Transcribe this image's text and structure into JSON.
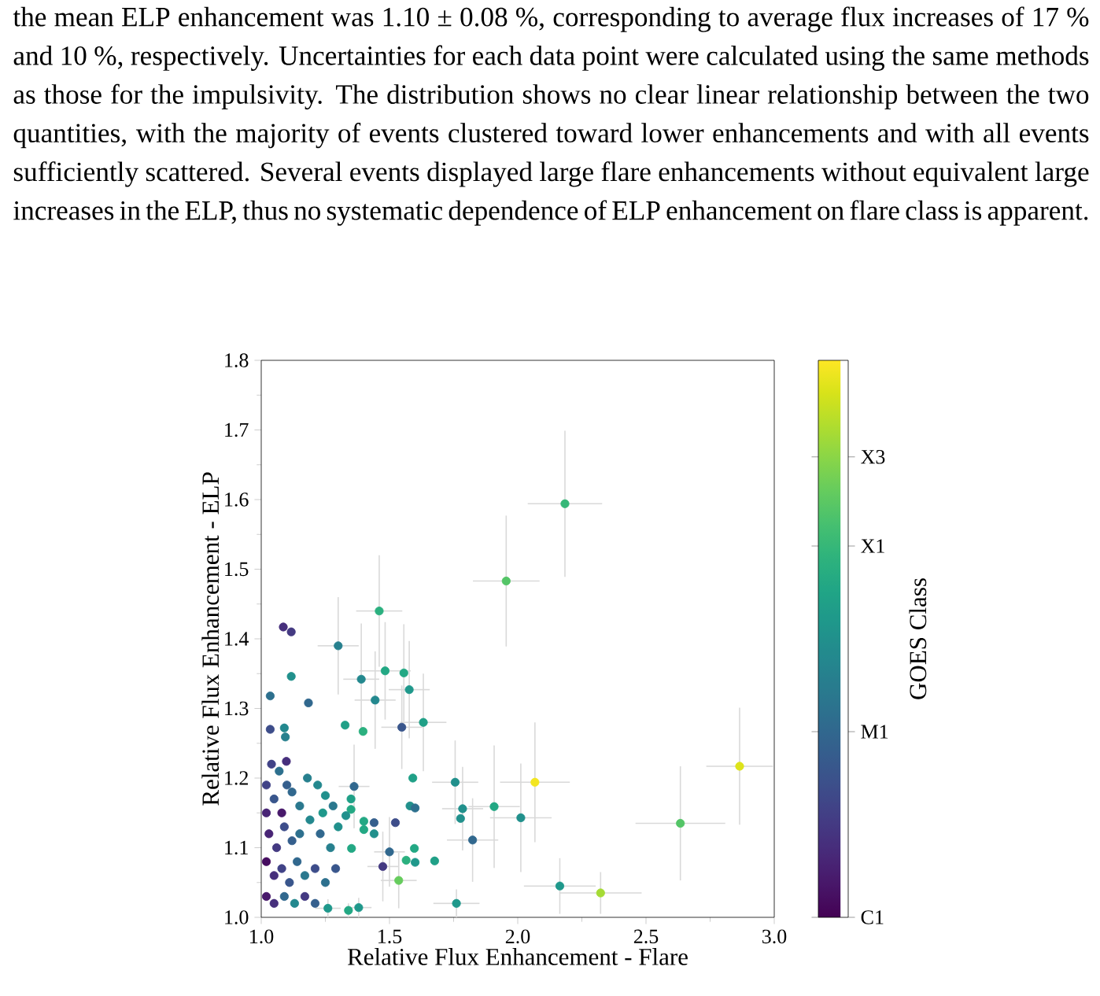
{
  "chart_data": {
    "type": "scatter",
    "annotations": [
      "the mean ELP enhancement was 1.10 ± 0.08 %, corresponding to average flux increases of 17 % and 10 %, respectively. Uncertainties for each data point were calculated using the same methods as those for the impulsivity. The distribution shows no clear linear relationship between the two quantities, with the majority of events clustered toward lower enhancements and with all events sufficiently scattered. Several events displayed large flare enhancements without equivalent large increases in the ELP, thus no systematic dependence of ELP enhancement on flare class is apparent."
    ],
    "xlabel": "Relative Flux Enhancement - Flare",
    "ylabel": "Relative Flux Enhancement - ELP",
    "clabel": "GOES Class",
    "marker": "circle",
    "xlim": [
      1.0,
      3.0
    ],
    "ylim": [
      1.0,
      1.8
    ],
    "xticks": [
      {
        "value": 1,
        "label": "1.0"
      },
      {
        "value": 1.5,
        "label": "1.5"
      },
      {
        "value": 2,
        "label": "2.0"
      },
      {
        "value": 2.5,
        "label": "2.5"
      },
      {
        "value": 3,
        "label": "3.0"
      }
    ],
    "yticks": [
      {
        "value": 1,
        "label": "1.0"
      },
      1.1,
      1.2,
      1.3,
      1.4,
      1.5,
      1.6,
      1.7,
      1.8
    ],
    "clim": [
      -6,
      -3
    ],
    "cticks": [
      {
        "value": -6,
        "label": "C1"
      },
      {
        "value": -5,
        "label": "M1"
      },
      {
        "value": -4,
        "label": "X1"
      },
      {
        "value": -3.52,
        "label": "X3"
      }
    ],
    "x": [
      1.955,
      2.184,
      2.865,
      2.634,
      2.067,
      2.164,
      2.323,
      1.908,
      2.012,
      1.824,
      1.46,
      1.086,
      1.117,
      1.3,
      1.117,
      1.483,
      1.556,
      1.39,
      1.577,
      1.035,
      1.184,
      1.444,
      1.327,
      1.397,
      1.548,
      1.632,
      1.035,
      1.09,
      1.094,
      1.098,
      1.591,
      1.756,
      1.785,
      1.777,
      1.58,
      1.6,
      1.523,
      1.597,
      1.565,
      1.6,
      1.676,
      1.536,
      1.761,
      1.474,
      1.5,
      1.44,
      1.44,
      1.362,
      1.35,
      1.35,
      1.33,
      1.4,
      1.4,
      1.352,
      1.26,
      1.34,
      1.38,
      1.02,
      1.05,
      1.08,
      1.12,
      1.15,
      1.18,
      1.22,
      1.25,
      1.28,
      1.03,
      1.06,
      1.09,
      1.12,
      1.15,
      1.19,
      1.23,
      1.27,
      1.02,
      1.05,
      1.08,
      1.11,
      1.14,
      1.17,
      1.21,
      1.25,
      1.29,
      1.02,
      1.05,
      1.09,
      1.13,
      1.17,
      1.21,
      1.02,
      1.04,
      1.1,
      1.07,
      1.3,
      1.24
    ],
    "values": [
      1.483,
      1.594,
      1.217,
      1.135,
      1.194,
      1.045,
      1.035,
      1.159,
      1.143,
      1.111,
      1.44,
      1.417,
      1.41,
      1.39,
      1.346,
      1.354,
      1.351,
      1.342,
      1.327,
      1.318,
      1.308,
      1.312,
      1.276,
      1.267,
      1.273,
      1.28,
      1.27,
      1.272,
      1.259,
      1.224,
      1.2,
      1.194,
      1.156,
      1.142,
      1.16,
      1.157,
      1.136,
      1.099,
      1.082,
      1.079,
      1.081,
      1.053,
      1.02,
      1.073,
      1.094,
      1.136,
      1.12,
      1.188,
      1.17,
      1.155,
      1.146,
      1.138,
      1.126,
      1.099,
      1.013,
      1.01,
      1.014,
      1.19,
      1.17,
      1.15,
      1.18,
      1.16,
      1.2,
      1.19,
      1.175,
      1.16,
      1.12,
      1.1,
      1.13,
      1.11,
      1.12,
      1.14,
      1.12,
      1.1,
      1.08,
      1.06,
      1.07,
      1.05,
      1.08,
      1.06,
      1.07,
      1.05,
      1.07,
      1.03,
      1.02,
      1.03,
      1.02,
      1.03,
      1.02,
      1.15,
      1.22,
      1.19,
      1.21,
      1.13,
      1.15
    ],
    "cvalues": [
      -3.8,
      -4.0,
      -3.15,
      -3.8,
      -3.05,
      -4.4,
      -3.4,
      -4.2,
      -4.5,
      -5.0,
      -4.1,
      -5.6,
      -5.5,
      -4.7,
      -4.5,
      -4.2,
      -4.2,
      -4.6,
      -4.4,
      -4.9,
      -5.0,
      -4.6,
      -4.3,
      -4.1,
      -5.2,
      -4.3,
      -5.3,
      -4.6,
      -4.7,
      -5.6,
      -4.3,
      -4.5,
      -4.5,
      -4.5,
      -4.5,
      -4.9,
      -5.3,
      -4.2,
      -4.1,
      -4.4,
      -4.3,
      -3.7,
      -4.4,
      -5.5,
      -5.0,
      -5.1,
      -4.5,
      -5.0,
      -4.3,
      -4.2,
      -4.5,
      -4.2,
      -4.2,
      -4.2,
      -4.4,
      -4.2,
      -4.4,
      -5.4,
      -5.2,
      -5.8,
      -5.0,
      -4.8,
      -4.7,
      -4.6,
      -4.5,
      -4.8,
      -5.7,
      -5.5,
      -5.3,
      -5.1,
      -4.9,
      -4.6,
      -5.0,
      -4.7,
      -5.9,
      -5.6,
      -5.4,
      -5.2,
      -5.0,
      -4.8,
      -5.3,
      -4.9,
      -5.2,
      -5.8,
      -5.6,
      -5.0,
      -4.6,
      -5.5,
      -5.1,
      -5.7,
      -5.4,
      -5.1,
      -4.9,
      -4.5,
      -4.4
    ],
    "xerrors": [
      0.13,
      0.145,
      0.13,
      0.175,
      0.136,
      0.14,
      0.16,
      0.1,
      0.12,
      0.1,
      0.09,
      null,
      null,
      0.08,
      null,
      0.1,
      null,
      0.07,
      0.08,
      null,
      null,
      0.08,
      null,
      null,
      0.08,
      0.09,
      null,
      null,
      null,
      null,
      null,
      0.09,
      0.08,
      null,
      null,
      null,
      null,
      null,
      null,
      null,
      null,
      0.07,
      0.09,
      0.06,
      0.06,
      null,
      null,
      0.06,
      null,
      null,
      null,
      null,
      null,
      null,
      0.05,
      null,
      0.05,
      null,
      null,
      null,
      null,
      null,
      null,
      null,
      null,
      null,
      null,
      null,
      null,
      null,
      null,
      null,
      null,
      null,
      null,
      null,
      null,
      null,
      null,
      null,
      null,
      null,
      null,
      null,
      null,
      null,
      null,
      null,
      null,
      null,
      null,
      null,
      null,
      null,
      null
    ],
    "errors": [
      0.094,
      0.105,
      0.084,
      0.082,
      0.086,
      0.04,
      0.03,
      0.088,
      0.078,
      0.06,
      0.08,
      null,
      null,
      0.07,
      null,
      0.07,
      0.07,
      0.08,
      0.07,
      null,
      null,
      0.07,
      null,
      null,
      0.06,
      0.07,
      null,
      null,
      null,
      null,
      null,
      0.06,
      0.06,
      null,
      null,
      null,
      null,
      null,
      null,
      null,
      null,
      0.04,
      0.02,
      0.05,
      0.05,
      null,
      null,
      0.06,
      null,
      null,
      null,
      null,
      null,
      null,
      0.013,
      0.01,
      0.014,
      null,
      null,
      null,
      null,
      null,
      null,
      null,
      null,
      null,
      null,
      null,
      null,
      null,
      null,
      null,
      null,
      null,
      null,
      null,
      null,
      null,
      null,
      null,
      null,
      null,
      null,
      null,
      null,
      null,
      null,
      null,
      null,
      null,
      null,
      null,
      null,
      null,
      null
    ]
  }
}
